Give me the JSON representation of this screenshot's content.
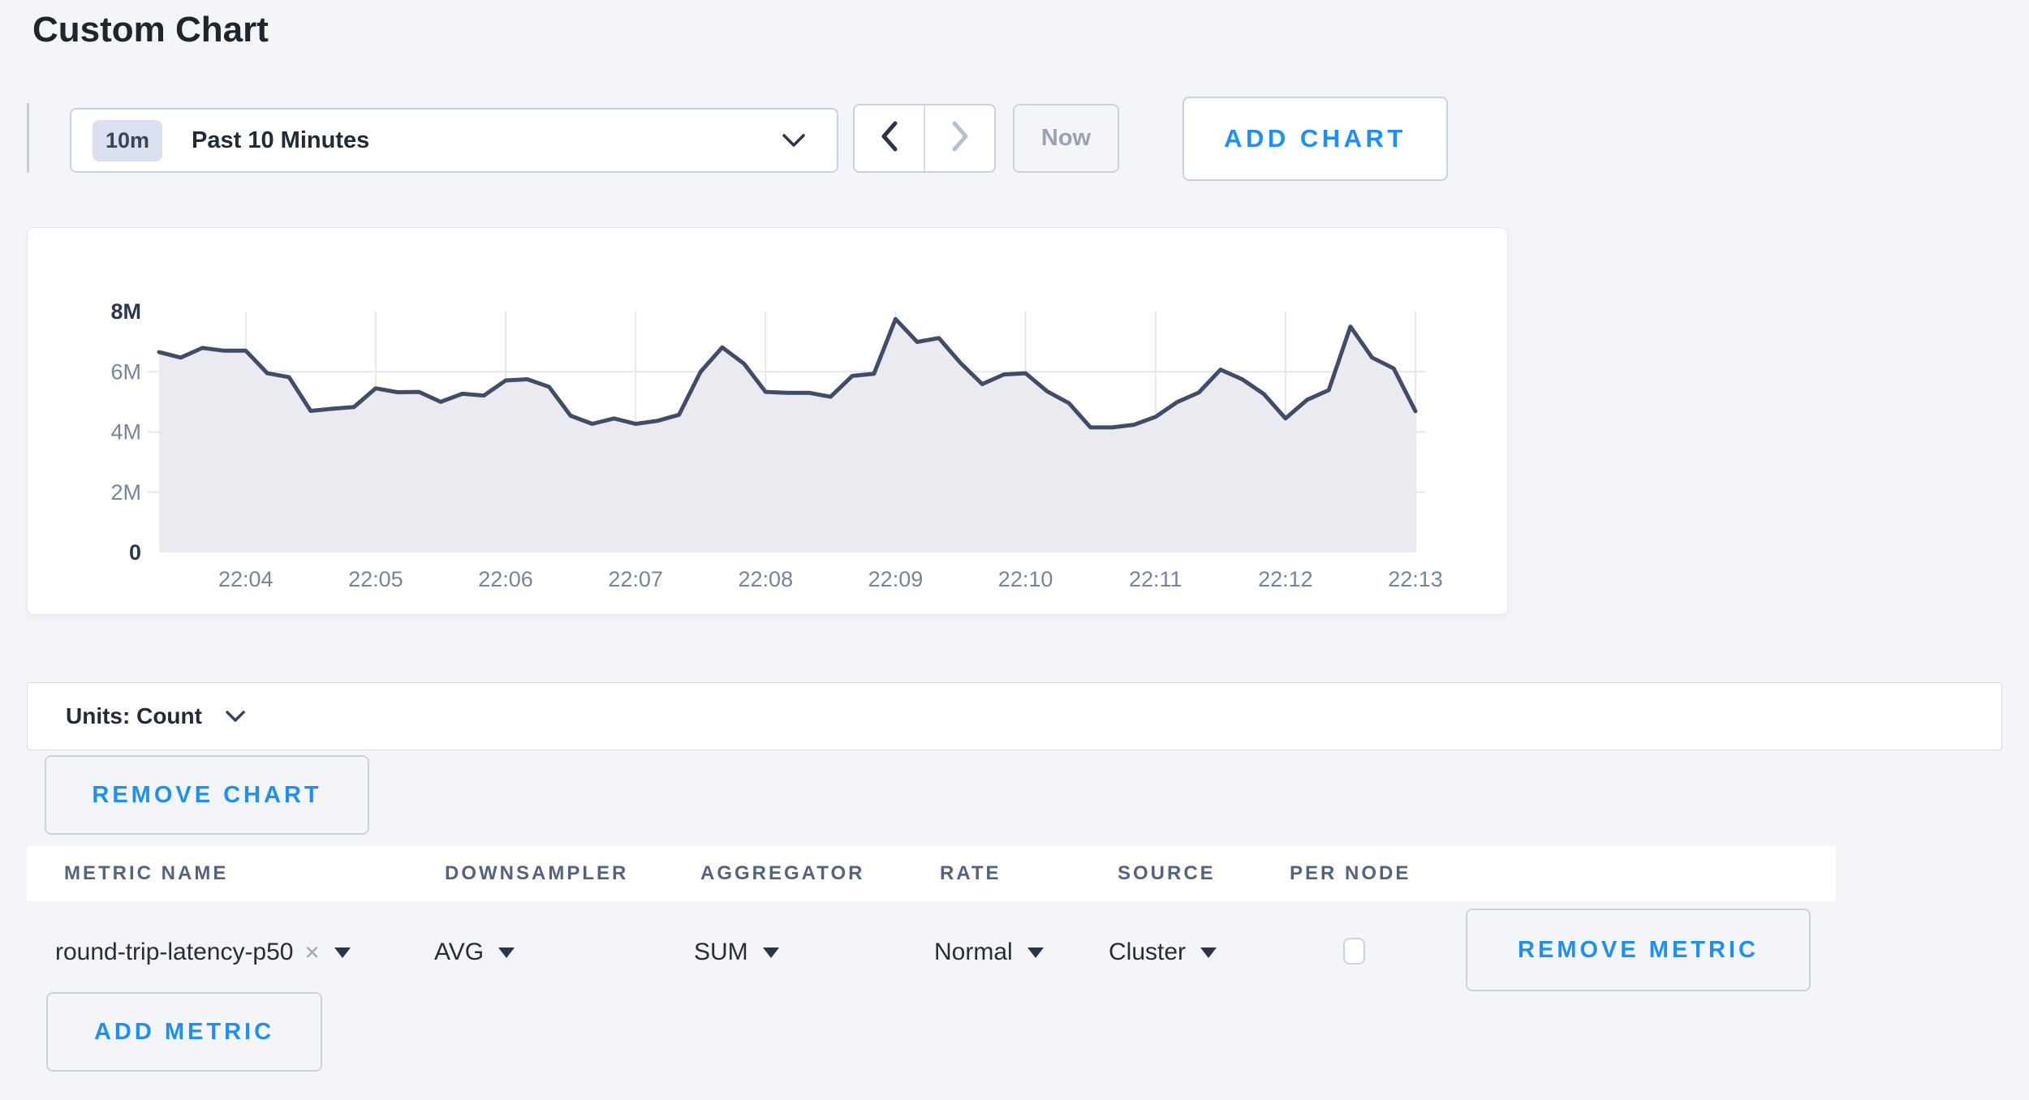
{
  "page": {
    "title": "Custom Chart"
  },
  "colors": {
    "accent_blue": "#1e90f5",
    "page_bg": "#f4f5f9",
    "line": "#414d66",
    "area_fill": "#e9ebf1",
    "grid": "#e4e7ee",
    "axis_muted": "#76859d",
    "axis_strong": "#2b3750"
  },
  "toolbar": {
    "range_badge": "10m",
    "range_label": "Past 10 Minutes",
    "now_label": "Now",
    "add_chart_label": "ADD CHART",
    "icons": {
      "range_open": "chevron-down-icon",
      "prev": "chevron-left-icon",
      "next": "chevron-right-icon"
    }
  },
  "chart_data": {
    "type": "area",
    "title": "",
    "value_unit": "Count",
    "x_start_time": "22:03:20",
    "x_step_seconds": 10,
    "x_tick_labels": [
      "22:04",
      "22:05",
      "22:06",
      "22:07",
      "22:08",
      "22:09",
      "22:10",
      "22:11",
      "22:12",
      "22:13"
    ],
    "first_tick_index": 4,
    "tick_every": 6,
    "ylim_millions": [
      0,
      8
    ],
    "y_ticks": [
      {
        "label": "8M",
        "value": 8,
        "bold": true,
        "grid": false
      },
      {
        "label": "6M",
        "value": 6,
        "bold": false,
        "grid": true
      },
      {
        "label": "4M",
        "value": 4,
        "bold": false,
        "grid": true
      },
      {
        "label": "2M",
        "value": 2,
        "bold": false,
        "grid": true
      },
      {
        "label": "0",
        "value": 0,
        "bold": true,
        "grid": false
      }
    ],
    "values_millions": [
      6.65,
      6.47,
      6.79,
      6.7,
      6.7,
      5.95,
      5.82,
      4.7,
      4.77,
      4.83,
      5.45,
      5.32,
      5.33,
      5.0,
      5.27,
      5.21,
      5.71,
      5.75,
      5.5,
      4.54,
      4.27,
      4.45,
      4.27,
      4.37,
      4.57,
      6.0,
      6.81,
      6.27,
      5.33,
      5.3,
      5.3,
      5.17,
      5.86,
      5.93,
      7.75,
      6.99,
      7.12,
      6.29,
      5.59,
      5.91,
      5.95,
      5.35,
      4.96,
      4.15,
      4.15,
      4.24,
      4.5,
      4.99,
      5.31,
      6.07,
      5.75,
      5.26,
      4.45,
      5.07,
      5.39,
      7.5,
      6.47,
      6.11,
      4.69
    ]
  },
  "units_bar": {
    "label": "Units: Count",
    "icon": "chevron-down-icon"
  },
  "remove_chart_label": "REMOVE CHART",
  "metrics_table": {
    "columns": [
      "METRIC NAME",
      "DOWNSAMPLER",
      "AGGREGATOR",
      "RATE",
      "SOURCE",
      "PER NODE"
    ],
    "rows": [
      {
        "metric_name": "round-trip-latency-p50",
        "clear_icon": "×",
        "downsampler": "AVG",
        "aggregator": "SUM",
        "rate": "Normal",
        "source": "Cluster",
        "per_node_checked": false,
        "remove_label": "REMOVE METRIC"
      }
    ],
    "add_metric_label": "ADD METRIC"
  }
}
